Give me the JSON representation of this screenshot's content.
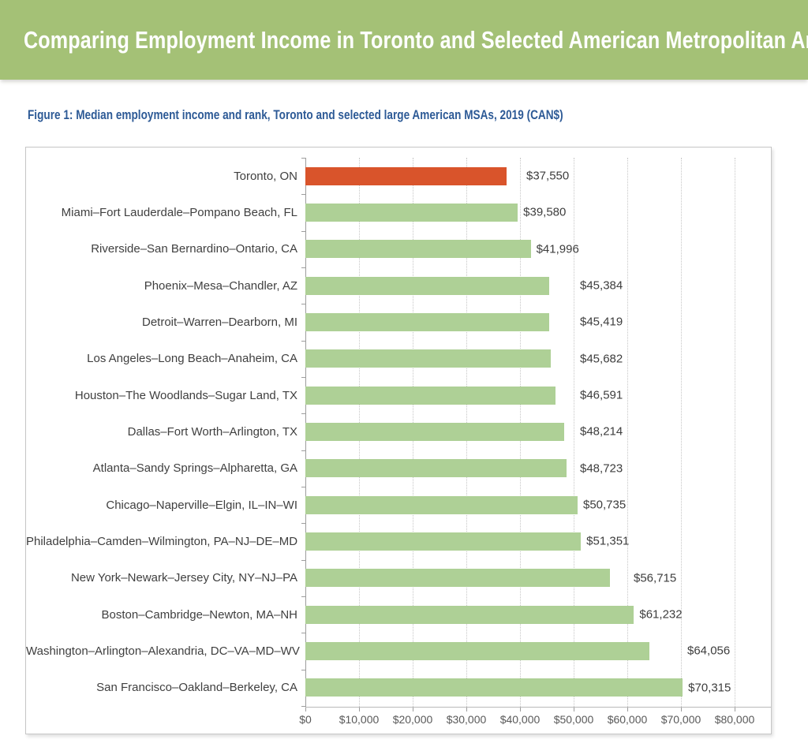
{
  "page": {
    "banner_title": "Comparing Employment Income in Toronto and Selected American Metropolitan Areas",
    "figure_caption": "Figure 1: Median employment income and rank, Toronto and selected large American MSAs, 2019 (CAN$)"
  },
  "chart_data": {
    "type": "bar",
    "orientation": "horizontal",
    "title": "Comparing Employment Income in Toronto and Selected American Metropolitan Areas",
    "subtitle": "Figure 1: Median employment income and rank, Toronto and selected large American MSAs, 2019 (CAN$)",
    "categories": [
      "Toronto, ON",
      "Miami–Fort Lauderdale–Pompano Beach, FL",
      "Riverside–San Bernardino–Ontario, CA",
      "Phoenix–Mesa–Chandler, AZ",
      "Detroit–Warren–Dearborn, MI",
      "Los Angeles–Long Beach–Anaheim, CA",
      "Houston–The Woodlands–Sugar Land, TX",
      "Dallas–Fort Worth–Arlington, TX",
      "Atlanta–Sandy Springs–Alpharetta, GA",
      "Chicago–Naperville–Elgin, IL–IN–WI",
      "Philadelphia–Camden–Wilmington, PA–NJ–DE–MD",
      "New York–Newark–Jersey City, NY–NJ–PA",
      "Boston–Cambridge–Newton, MA–NH",
      "Washington–Arlington–Alexandria, DC–VA–MD–WV",
      "San Francisco–Oakland–Berkeley, CA"
    ],
    "values": [
      37550,
      39580,
      41996,
      45384,
      45419,
      45682,
      46591,
      48214,
      48723,
      50735,
      51351,
      56715,
      61232,
      64056,
      70315
    ],
    "value_labels": [
      "$37,550",
      "$39,580",
      "$41,996",
      "$45,384",
      "$45,419",
      "$45,682",
      "$46,591",
      "$48,214",
      "$48,723",
      "$50,735",
      "$51,351",
      "$56,715",
      "$61,232",
      "$64,056",
      "$70,315"
    ],
    "highlight_index": 0,
    "highlight_category": "Toronto, ON",
    "colors": {
      "bar": "#aed096",
      "highlight_bar": "#d9542b",
      "banner_bg": "#a4c176",
      "caption_text": "#2d5a96"
    },
    "x_axis": {
      "min": 0,
      "max": 80000,
      "tick_interval": 10000,
      "tick_labels": [
        "$0",
        "$10,000",
        "$20,000",
        "$30,000",
        "$40,000",
        "$50,000",
        "$60,000",
        "$70,000",
        "$80,000"
      ]
    },
    "grid": {
      "vertical_dotted": true
    },
    "legend_position": "none"
  }
}
